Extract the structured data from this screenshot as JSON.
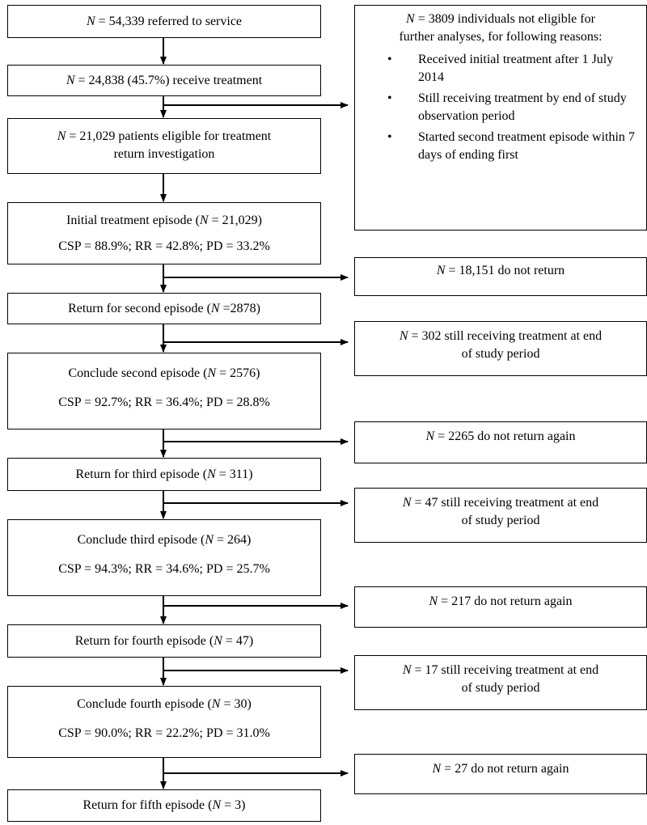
{
  "main_boxes": {
    "b1": {
      "pre": "",
      "n": "N",
      "post": " = 54,339 referred to service"
    },
    "b2": {
      "pre": "",
      "n": "N",
      "post": " = 24,838 (45.7%) receive treatment"
    },
    "b3": {
      "pre": "",
      "n": "N",
      "post": " = 21,029 patients eligible for treatment",
      "line2": "return investigation"
    },
    "b4": {
      "pre": "Initial treatment episode (",
      "n": "N",
      "post": " = 21,029)",
      "line2": "CSP = 88.9%; RR = 42.8%; PD = 33.2%"
    },
    "b5": {
      "pre": "Return for second episode (",
      "n": "N",
      "post": " =2878)"
    },
    "b6": {
      "pre": "Conclude second episode (",
      "n": "N",
      "post": " = 2576)",
      "line2": "CSP = 92.7%; RR = 36.4%; PD = 28.8%"
    },
    "b7": {
      "pre": "Return for third episode (",
      "n": "N",
      "post": " = 311)"
    },
    "b8": {
      "pre": "Conclude third episode (",
      "n": "N",
      "post": " = 264)",
      "line2": "CSP = 94.3%; RR = 34.6%; PD = 25.7%"
    },
    "b9": {
      "pre": "Return for fourth episode (",
      "n": "N",
      "post": " = 47)"
    },
    "b10": {
      "pre": "Conclude fourth episode (",
      "n": "N",
      "post": " = 30)",
      "line2": "CSP = 90.0%; RR = 22.2%; PD = 31.0%"
    },
    "b11": {
      "pre": "Return for fifth episode (",
      "n": "N",
      "post": " = 3)"
    }
  },
  "side_boxes": {
    "excluded": {
      "n": "N",
      "line1": " = 3809 individuals not eligible for",
      "line2": "further analyses, for following reasons:",
      "bullet": "•",
      "reasons": [
        "Received initial treatment after 1 July 2014",
        "Still receiving treatment by end of study observation period",
        "Started second treatment episode within 7 days of ending first"
      ]
    },
    "s1": {
      "n": "N",
      "post": " = 18,151 do not return"
    },
    "s2": {
      "n": "N",
      "post": " = 302 still receiving treatment at end",
      "line2": "of study period"
    },
    "s3": {
      "n": "N",
      "post": " = 2265 do not return again"
    },
    "s4": {
      "n": "N",
      "post": " = 47 still receiving treatment at end",
      "line2": "of study period"
    },
    "s5": {
      "n": "N",
      "post": " = 217 do not return again"
    },
    "s6": {
      "n": "N",
      "post": " = 17 still receiving treatment at end",
      "line2": "of study period"
    },
    "s7": {
      "n": "N",
      "post": " = 27 do not return again"
    }
  }
}
